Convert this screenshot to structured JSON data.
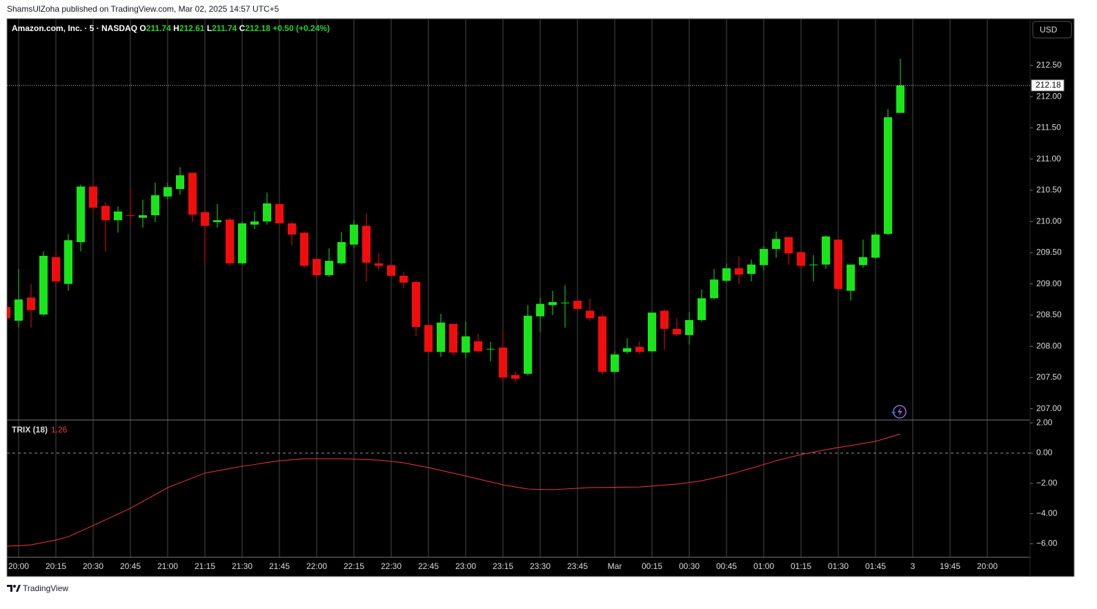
{
  "header": {
    "attribution": "ShamsUlZoha published on TradingView.com, Mar 02, 2025 14:57 UTC+5",
    "brand": "TradingView"
  },
  "chart_data": [
    {
      "type": "candlestick",
      "title": "Amazon.com, Inc. · 5 · NASDAQ",
      "ohlc_letters": [
        "O",
        "H",
        "L",
        "C"
      ],
      "change": "+0.50 (+0.24%)",
      "currency": "USD",
      "up_color": "#19e619",
      "down_color": "#f20d0d",
      "open": [
        208.63,
        208.41,
        208.78,
        208.51,
        209.43,
        209.0,
        209.67,
        210.56,
        210.25,
        210.02,
        210.1,
        210.06,
        210.1,
        210.4,
        210.52,
        210.78,
        210.15,
        209.99,
        210.03,
        209.33,
        209.95,
        210.0,
        210.28,
        209.97,
        209.82,
        209.4,
        209.14,
        209.33,
        209.63,
        209.93,
        209.33,
        209.3,
        209.13,
        209.03,
        208.34,
        207.91,
        208.36,
        207.9,
        208.08,
        207.95,
        207.98,
        207.54,
        207.56,
        208.48,
        208.66,
        208.69,
        208.73,
        208.57,
        208.48,
        207.59,
        207.91,
        207.99,
        207.92,
        208.57,
        208.28,
        208.18,
        208.42,
        208.77,
        209.05,
        209.25,
        209.16,
        209.3,
        209.56,
        209.75,
        209.51,
        209.3,
        209.31,
        209.71,
        208.89,
        209.3,
        209.42,
        209.8,
        211.74
      ],
      "high": [
        208.7,
        209.24,
        209.0,
        209.52,
        209.5,
        209.8,
        210.59,
        210.62,
        210.31,
        210.24,
        210.55,
        210.35,
        210.62,
        210.62,
        210.87,
        210.78,
        210.18,
        210.28,
        210.06,
        210.0,
        210.16,
        210.46,
        210.31,
        210.0,
        209.84,
        209.4,
        209.57,
        209.83,
        210.02,
        210.13,
        209.49,
        209.32,
        209.19,
        209.05,
        208.36,
        208.52,
        208.36,
        208.4,
        208.2,
        208.07,
        208.25,
        207.59,
        208.66,
        208.78,
        208.89,
        208.98,
        208.77,
        208.76,
        208.52,
        207.92,
        208.13,
        208.08,
        208.54,
        208.59,
        208.45,
        208.55,
        208.91,
        209.24,
        209.33,
        209.44,
        209.39,
        209.61,
        209.84,
        209.75,
        209.51,
        209.46,
        209.78,
        209.71,
        209.31,
        209.71,
        209.82,
        211.8,
        212.61
      ],
      "low": [
        208.35,
        208.3,
        208.3,
        208.49,
        208.95,
        208.89,
        209.52,
        210.19,
        209.52,
        209.82,
        209.95,
        209.9,
        209.99,
        210.35,
        210.43,
        209.99,
        209.3,
        209.9,
        209.29,
        209.31,
        209.88,
        209.95,
        209.97,
        209.62,
        209.26,
        209.11,
        209.11,
        209.31,
        209.57,
        209.04,
        209.22,
        209.11,
        208.93,
        208.17,
        207.91,
        207.83,
        207.86,
        207.81,
        207.9,
        207.76,
        207.42,
        207.42,
        207.53,
        208.23,
        208.5,
        208.3,
        208.58,
        208.41,
        207.55,
        207.56,
        207.88,
        207.88,
        207.9,
        207.94,
        208.16,
        208.03,
        208.4,
        208.75,
        209.03,
        208.99,
        209.04,
        209.22,
        209.42,
        209.31,
        209.25,
        209.04,
        209.24,
        208.9,
        208.73,
        209.26,
        209.4,
        209.78,
        211.74
      ],
      "close": [
        208.45,
        208.75,
        208.58,
        209.45,
        209.04,
        209.7,
        210.56,
        210.22,
        210.02,
        210.16,
        210.09,
        210.1,
        210.42,
        210.55,
        210.74,
        210.11,
        209.93,
        210.02,
        209.33,
        209.97,
        210.0,
        210.29,
        209.97,
        209.79,
        209.29,
        209.14,
        209.37,
        209.67,
        209.95,
        209.34,
        209.29,
        209.13,
        209.02,
        208.31,
        207.91,
        208.38,
        207.9,
        208.16,
        207.92,
        207.96,
        207.5,
        207.48,
        208.49,
        208.68,
        208.71,
        208.7,
        208.6,
        208.45,
        207.59,
        207.87,
        207.97,
        207.91,
        208.54,
        208.28,
        208.19,
        208.42,
        208.77,
        209.07,
        209.25,
        209.15,
        209.31,
        209.56,
        209.72,
        209.49,
        209.29,
        209.31,
        209.76,
        208.92,
        209.31,
        209.43,
        209.79,
        211.67,
        212.18
      ],
      "ylim": [
        206.83,
        213.25
      ],
      "yticks": [
        {
          "value": 207,
          "label": "207.00"
        },
        {
          "value": 207.5,
          "label": "207.50"
        },
        {
          "value": 208,
          "label": "208.00"
        },
        {
          "value": 208.5,
          "label": "208.50"
        },
        {
          "value": 209,
          "label": "209.00"
        },
        {
          "value": 209.5,
          "label": "209.50"
        },
        {
          "value": 210,
          "label": "210.00"
        },
        {
          "value": 210.5,
          "label": "210.50"
        },
        {
          "value": 211,
          "label": "211.00"
        },
        {
          "value": 211.5,
          "label": "211.50"
        },
        {
          "value": 212,
          "label": "212.00"
        },
        {
          "value": 212.5,
          "label": "212.50"
        }
      ]
    },
    {
      "type": "line",
      "name": "TRIX (18)",
      "color": "#f23645",
      "values": [
        -6.16,
        -6.12,
        -6.07,
        -5.91,
        -5.75,
        -5.53,
        -5.16,
        -4.79,
        -4.41,
        -4.03,
        -3.65,
        -3.19,
        -2.74,
        -2.28,
        -1.96,
        -1.64,
        -1.32,
        -1.17,
        -1.02,
        -0.87,
        -0.75,
        -0.62,
        -0.5,
        -0.44,
        -0.37,
        -0.37,
        -0.37,
        -0.37,
        -0.4,
        -0.43,
        -0.46,
        -0.55,
        -0.64,
        -0.8,
        -0.96,
        -1.14,
        -1.33,
        -1.51,
        -1.71,
        -1.9,
        -2.1,
        -2.24,
        -2.37,
        -2.4,
        -2.42,
        -2.37,
        -2.33,
        -2.28,
        -2.27,
        -2.26,
        -2.25,
        -2.24,
        -2.18,
        -2.11,
        -2.05,
        -1.94,
        -1.83,
        -1.65,
        -1.46,
        -1.23,
        -1.0,
        -0.75,
        -0.5,
        -0.3,
        -0.09,
        0.07,
        0.23,
        0.37,
        0.5,
        0.64,
        0.78,
        1.02,
        1.26
      ],
      "ylim": [
        -6.89,
        2.19
      ],
      "yticks": [
        {
          "value": 2,
          "label": "2.00"
        },
        {
          "value": 0,
          "label": "0.00"
        },
        {
          "value": -2,
          "label": "−2.00"
        },
        {
          "value": -4,
          "label": "−4.00"
        },
        {
          "value": -6,
          "label": "−6.00"
        }
      ],
      "xtick_labels": [
        "20:00",
        "20:15",
        "20:30",
        "20:45",
        "21:00",
        "21:15",
        "21:30",
        "21:45",
        "22:00",
        "22:15",
        "22:30",
        "22:45",
        "23:00",
        "23:15",
        "23:30",
        "23:45",
        "Mar",
        "00:15",
        "00:30",
        "00:45",
        "01:00",
        "01:15",
        "01:30",
        "01:45",
        "3",
        "19:45",
        "20:00"
      ]
    }
  ]
}
